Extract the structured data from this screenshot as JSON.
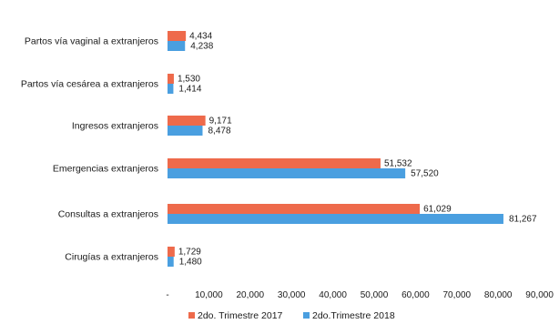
{
  "chart_data": {
    "type": "bar",
    "orientation": "horizontal",
    "categories": [
      "Partos vía vaginal a extranjeros",
      "Partos vía cesárea a extranjeros",
      "Ingresos extranjeros",
      "Emergencias extranjeros",
      "Consultas a extranjeros",
      "Cirugías a extranjeros"
    ],
    "series": [
      {
        "name": "2do. Trimestre 2017",
        "color": "#ee6a4b",
        "values": [
          4434,
          1530,
          9171,
          51532,
          61029,
          1729
        ],
        "labels": [
          "4,434",
          "1,530",
          "9,171",
          "51,532",
          "61,029",
          "1,729"
        ]
      },
      {
        "name": "2do.Trimestre 2018",
        "color": "#4a9fe0",
        "values": [
          4238,
          1414,
          8478,
          57520,
          81267,
          1480
        ],
        "labels": [
          "4,238",
          "1,414",
          "8,478",
          "57,520",
          "81,267",
          "1,480"
        ]
      }
    ],
    "xlim": [
      0,
      90000
    ],
    "xticks": [
      "-",
      "10,000",
      "20,000",
      "30,000",
      "40,000",
      "50,000",
      "60,000",
      "70,000",
      "80,000",
      "90,000"
    ],
    "grid": false,
    "legend_position": "bottom"
  }
}
